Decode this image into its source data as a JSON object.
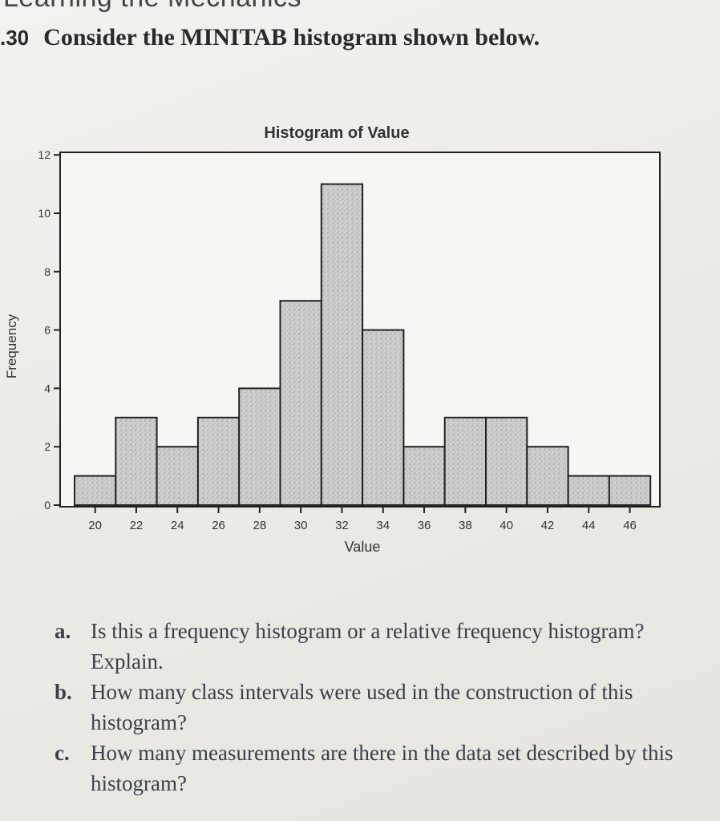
{
  "header": {
    "section_heading": "Learning the Mechanics",
    "problem_number": ".30",
    "problem_text": "Consider the MINITAB histogram shown below."
  },
  "chart_data": {
    "type": "bar",
    "title": "Histogram of Value",
    "xlabel": "Value",
    "ylabel": "Frequency",
    "bin_width": 2,
    "x_ticks": [
      20,
      22,
      24,
      26,
      28,
      30,
      32,
      34,
      36,
      38,
      40,
      42,
      44,
      46
    ],
    "y_ticks": [
      0,
      2,
      4,
      6,
      8,
      10,
      12
    ],
    "xlim": [
      18,
      48
    ],
    "ylim": [
      0,
      12
    ],
    "bins": [
      {
        "center": 20,
        "frequency": 1
      },
      {
        "center": 22,
        "frequency": 3
      },
      {
        "center": 24,
        "frequency": 2
      },
      {
        "center": 26,
        "frequency": 3
      },
      {
        "center": 28,
        "frequency": 4
      },
      {
        "center": 30,
        "frequency": 7
      },
      {
        "center": 32,
        "frequency": 11
      },
      {
        "center": 34,
        "frequency": 6
      },
      {
        "center": 36,
        "frequency": 2
      },
      {
        "center": 38,
        "frequency": 3
      },
      {
        "center": 40,
        "frequency": 3
      },
      {
        "center": 42,
        "frequency": 2
      },
      {
        "center": 44,
        "frequency": 1
      },
      {
        "center": 46,
        "frequency": 1
      }
    ],
    "grid": false,
    "bar_fill": "#c9c9c9",
    "bar_stroke": "#222222"
  },
  "questions": [
    {
      "letter": "a.",
      "text": "Is this a frequency histogram or a relative frequency histogram? Explain."
    },
    {
      "letter": "b.",
      "text": "How many class intervals were used in the construction of this histogram?"
    },
    {
      "letter": "c.",
      "text": "How many measurements are there in the data set described by this histogram?"
    }
  ]
}
